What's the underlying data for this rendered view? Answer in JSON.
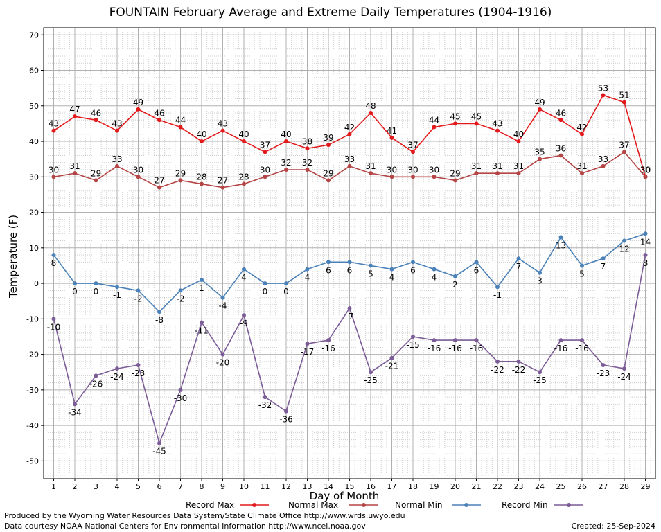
{
  "chart_data": {
    "type": "line",
    "title": "FOUNTAIN February Average and Extreme Daily Temperatures (1904-1916)",
    "xlabel": "Day of Month",
    "ylabel": "Temperature (F)",
    "ylim": [
      -55,
      72
    ],
    "yticks": [
      -50,
      -40,
      -30,
      -20,
      -10,
      0,
      10,
      20,
      30,
      40,
      50,
      60,
      70
    ],
    "grid": true,
    "legend_position": "bottom",
    "x": [
      1,
      2,
      3,
      4,
      5,
      6,
      7,
      8,
      9,
      10,
      11,
      12,
      13,
      14,
      15,
      16,
      17,
      18,
      19,
      20,
      21,
      22,
      23,
      24,
      25,
      26,
      27,
      28,
      29
    ],
    "series": [
      {
        "name": "Record Max",
        "color": "#e31a1c",
        "label_pos": "above",
        "values": [
          43,
          47,
          46,
          43,
          49,
          46,
          44,
          40,
          43,
          40,
          37,
          40,
          38,
          39,
          42,
          48,
          41,
          37,
          44,
          45,
          45,
          43,
          40,
          49,
          46,
          42,
          53,
          51,
          30
        ]
      },
      {
        "name": "Normal Max",
        "color": "#b54445",
        "label_pos": "above",
        "values": [
          30,
          31,
          29,
          33,
          30,
          27,
          29,
          28,
          27,
          28,
          30,
          32,
          32,
          29,
          33,
          31,
          30,
          30,
          30,
          29,
          31,
          31,
          31,
          35,
          36,
          31,
          33,
          37,
          30
        ]
      },
      {
        "name": "Normal Min",
        "color": "#4a81b8",
        "label_pos": "below",
        "values": [
          8,
          0,
          0,
          -1,
          -2,
          -8,
          -2,
          1,
          -4,
          4,
          0,
          0,
          4,
          6,
          6,
          5,
          4,
          6,
          4,
          2,
          6,
          -1,
          7,
          3,
          13,
          5,
          7,
          12,
          14
        ]
      },
      {
        "name": "Record Min",
        "color": "#7b5c97",
        "label_pos": "below",
        "values": [
          -10,
          -34,
          -26,
          -24,
          -23,
          -45,
          -30,
          -11,
          -20,
          -9,
          -32,
          -36,
          -17,
          -16,
          -7,
          -25,
          -21,
          -15,
          -16,
          -16,
          -16,
          -22,
          -22,
          -25,
          -16,
          -16,
          -23,
          -24,
          8
        ]
      }
    ]
  },
  "footer": {
    "produced_by": "Produced by the Wyoming Water Resources Data System/State Climate Office http://www.wrds.uwyo.edu",
    "data_courtesy": "Data courtesy NOAA National Centers for Environmental Information http://www.ncei.noaa.gov",
    "created": "Created:  25-Sep-2024"
  }
}
